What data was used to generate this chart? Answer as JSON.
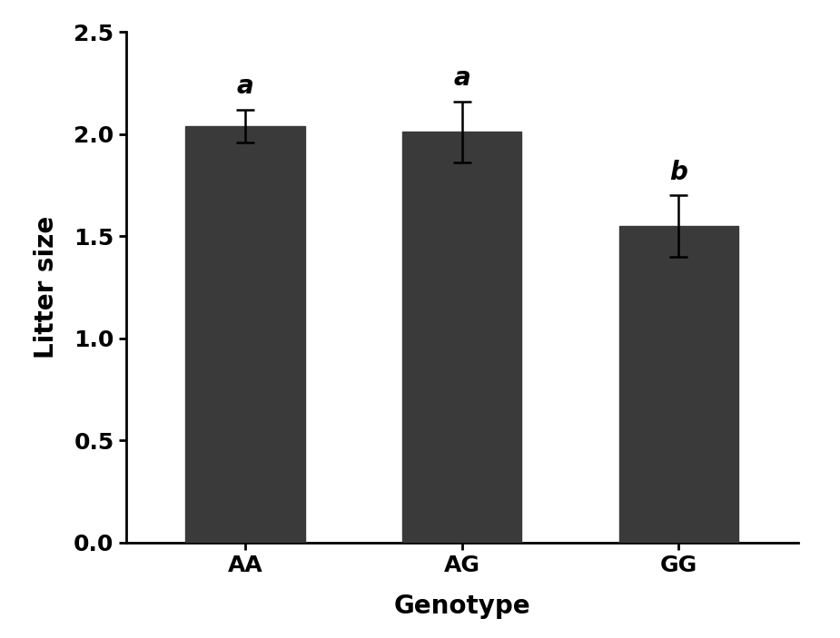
{
  "categories": [
    "AA",
    "AG",
    "GG"
  ],
  "values": [
    2.04,
    2.01,
    1.55
  ],
  "errors": [
    0.08,
    0.15,
    0.15
  ],
  "significance_labels": [
    "a",
    "a",
    "b"
  ],
  "bar_color": "#3a3a3a",
  "bar_width": 0.55,
  "bar_positions": [
    1,
    2,
    3
  ],
  "xlabel": "Genotype",
  "ylabel": "Litter size",
  "ylim": [
    0,
    2.5
  ],
  "yticks": [
    0.0,
    0.5,
    1.0,
    1.5,
    2.0,
    2.5
  ],
  "title": "",
  "xlabel_fontsize": 20,
  "ylabel_fontsize": 20,
  "tick_fontsize": 18,
  "sig_label_fontsize": 20,
  "background_color": "#ffffff",
  "error_cap_size": 7,
  "error_linewidth": 1.8
}
